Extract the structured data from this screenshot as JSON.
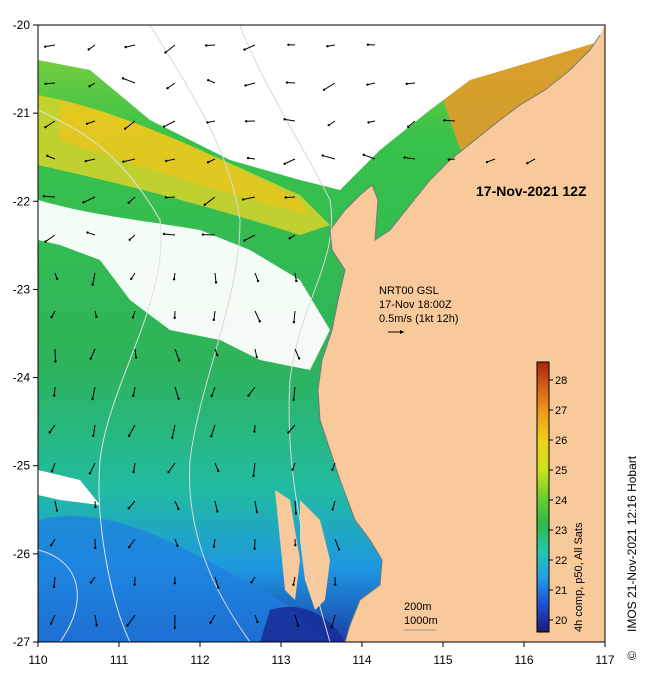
{
  "map": {
    "timestamp_label": "17-Nov-2021 12Z",
    "current_legend": {
      "line1": "NRT00 GSL",
      "line2": "17-Nov 18:00Z",
      "line3": "0.5m/s (1kt 12h)"
    },
    "isobath_legend": {
      "line1": "200m",
      "line2": "1000m"
    },
    "colorbar": {
      "title": "4h comp, p50, All Sats",
      "ticks": [
        "20",
        "21",
        "22",
        "23",
        "24",
        "25",
        "26",
        "27",
        "28"
      ],
      "min": 19.6,
      "max": 28.6,
      "colors": [
        "#1a1a7a",
        "#1f4fd0",
        "#1f9ee8",
        "#22c6b0",
        "#2fb84a",
        "#6ccf2e",
        "#c8e21e",
        "#f0d21a",
        "#f0a21a",
        "#d9641a",
        "#a8220e"
      ]
    },
    "credit": "IMOS 21-Nov-2021 12:16 Hobart",
    "copyright_symbol": "©",
    "x_axis": {
      "ticks": [
        "110",
        "111",
        "112",
        "113",
        "114",
        "115",
        "116",
        "117"
      ],
      "min": 110,
      "max": 117
    },
    "y_axis": {
      "ticks": [
        "-20",
        "-21",
        "-22",
        "-23",
        "-24",
        "-25",
        "-26",
        "-27"
      ],
      "min": -27,
      "max": -20
    },
    "colors": {
      "land": "#f8c99a",
      "cloud": "#ffffff",
      "isobath": "#d8d8d8",
      "coast": "#777777"
    }
  }
}
